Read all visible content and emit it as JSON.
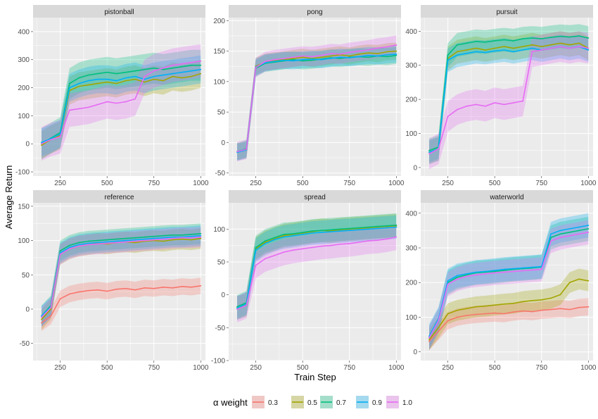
{
  "chart_data": {
    "type": "line",
    "xlabel": "Train Step",
    "ylabel": "Average Return",
    "x_ticks": [
      250,
      500,
      750,
      1000
    ],
    "xlim": [
      105,
      1025
    ],
    "grid": true,
    "legend_position": "bottom",
    "legend": {
      "title": "α weight",
      "entries": [
        {
          "label": "0.3",
          "color": "#F8766D"
        },
        {
          "label": "0.5",
          "color": "#A3A500"
        },
        {
          "label": "0.7",
          "color": "#00BF7D"
        },
        {
          "label": "0.9",
          "color": "#00B0F6"
        },
        {
          "label": "1.0",
          "color": "#E76BF3"
        }
      ]
    },
    "x": [
      150,
      200,
      250,
      300,
      350,
      400,
      450,
      500,
      550,
      600,
      650,
      700,
      750,
      800,
      850,
      900,
      950,
      1000
    ],
    "panels": [
      {
        "name": "pistonball",
        "ylim": [
          -115,
          450
        ],
        "y_ticks": [
          -100,
          0,
          100,
          200,
          300,
          400
        ],
        "series": [
          {
            "alpha": "0.5",
            "values": [
              -5,
              15,
              30,
              190,
              205,
              210,
              215,
              220,
              215,
              225,
              230,
              220,
              230,
              225,
              240,
              235,
              240,
              250
            ],
            "band": 50
          },
          {
            "alpha": "0.7",
            "values": [
              0,
              20,
              40,
              215,
              235,
              245,
              250,
              255,
              250,
              255,
              260,
              265,
              270,
              265,
              270,
              275,
              280,
              280
            ],
            "band": 55
          },
          {
            "alpha": "0.9",
            "values": [
              5,
              18,
              35,
              200,
              215,
              225,
              230,
              230,
              225,
              235,
              240,
              230,
              240,
              245,
              250,
              255,
              260,
              265
            ],
            "band": 50
          },
          {
            "alpha": "1.0",
            "values": [
              0,
              15,
              25,
              120,
              125,
              130,
              140,
              150,
              145,
              150,
              160,
              240,
              260,
              270,
              280,
              285,
              290,
              295
            ],
            "band": 60
          }
        ]
      },
      {
        "name": "pong",
        "ylim": [
          -55,
          205
        ],
        "y_ticks": [
          -50,
          0,
          50,
          100,
          150,
          200
        ],
        "series": [
          {
            "alpha": "0.5",
            "values": [
              -15,
              -12,
              125,
              132,
              134,
              136,
              138,
              140,
              138,
              140,
              142,
              144,
              142,
              145,
              147,
              146,
              149,
              150
            ],
            "band": 14
          },
          {
            "alpha": "0.7",
            "values": [
              -15,
              -10,
              122,
              130,
              132,
              134,
              136,
              134,
              135,
              137,
              139,
              138,
              140,
              141,
              140,
              142,
              141,
              143
            ],
            "band": 14
          },
          {
            "alpha": "0.9",
            "values": [
              -16,
              -12,
              124,
              131,
              133,
              135,
              134,
              136,
              137,
              136,
              138,
              140,
              139,
              141,
              143,
              142,
              144,
              145
            ],
            "band": 14
          },
          {
            "alpha": "1.0",
            "values": [
              -15,
              -11,
              123,
              133,
              136,
              138,
              140,
              142,
              141,
              143,
              146,
              145,
              148,
              150,
              152,
              155,
              157,
              160
            ],
            "band": 16
          }
        ]
      },
      {
        "name": "pursuit",
        "ylim": [
          -25,
          440
        ],
        "y_ticks": [
          0,
          100,
          200,
          300,
          400
        ],
        "series": [
          {
            "alpha": "0.5",
            "values": [
              45,
              55,
              320,
              340,
              345,
              350,
              345,
              350,
              355,
              350,
              355,
              360,
              355,
              360,
              365,
              360,
              365,
              350
            ],
            "band": 35
          },
          {
            "alpha": "0.7",
            "values": [
              50,
              60,
              330,
              360,
              365,
              370,
              368,
              372,
              375,
              372,
              378,
              380,
              378,
              382,
              385,
              383,
              386,
              380
            ],
            "band": 35
          },
          {
            "alpha": "0.9",
            "values": [
              45,
              55,
              315,
              330,
              335,
              340,
              338,
              342,
              345,
              340,
              345,
              350,
              345,
              350,
              355,
              350,
              355,
              345
            ],
            "band": 35
          },
          {
            "alpha": "1.0",
            "values": [
              40,
              55,
              150,
              170,
              180,
              185,
              180,
              190,
              185,
              190,
              195,
              340,
              345,
              350,
              355,
              350,
              355,
              350
            ],
            "band": 45
          }
        ]
      },
      {
        "name": "reference",
        "ylim": [
          -75,
          155
        ],
        "y_ticks": [
          -50,
          0,
          50,
          100,
          150
        ],
        "series": [
          {
            "alpha": "0.3",
            "values": [
              -20,
              -10,
              15,
              22,
              25,
              27,
              28,
              26,
              29,
              30,
              28,
              31,
              30,
              32,
              31,
              33,
              32,
              34
            ],
            "band": 12
          },
          {
            "alpha": "0.5",
            "values": [
              -15,
              0,
              80,
              88,
              92,
              94,
              96,
              95,
              97,
              98,
              97,
              99,
              100,
              99,
              101,
              102,
              101,
              103
            ],
            "band": 15
          },
          {
            "alpha": "0.7",
            "values": [
              -10,
              5,
              85,
              93,
              97,
              99,
              100,
              101,
              102,
              103,
              104,
              105,
              106,
              107,
              108,
              108,
              109,
              110
            ],
            "band": 15
          },
          {
            "alpha": "0.9",
            "values": [
              -10,
              3,
              82,
              90,
              94,
              96,
              97,
              98,
              99,
              100,
              101,
              102,
              103,
              104,
              105,
              105,
              106,
              107
            ],
            "band": 15
          },
          {
            "alpha": "1.0",
            "values": [
              -12,
              2,
              80,
              88,
              92,
              94,
              95,
              96,
              97,
              98,
              99,
              100,
              101,
              102,
              103,
              104,
              104,
              105
            ],
            "band": 15
          }
        ]
      },
      {
        "name": "spread",
        "ylim": [
          -100,
          140
        ],
        "y_ticks": [
          -100,
          -50,
          0,
          50,
          100
        ],
        "series": [
          {
            "alpha": "0.5",
            "values": [
              -20,
              -15,
              70,
              80,
              85,
              90,
              92,
              94,
              96,
              98,
              97,
              99,
              100,
              101,
              102,
              103,
              104,
              105
            ],
            "band": 18
          },
          {
            "alpha": "0.7",
            "values": [
              -18,
              -12,
              72,
              82,
              87,
              92,
              93,
              95,
              97,
              98,
              99,
              100,
              101,
              102,
              103,
              104,
              105,
              106
            ],
            "band": 18
          },
          {
            "alpha": "0.9",
            "values": [
              -20,
              -14,
              68,
              78,
              84,
              88,
              90,
              92,
              94,
              95,
              96,
              97,
              98,
              99,
              100,
              101,
              102,
              103
            ],
            "band": 18
          },
          {
            "alpha": "1.0",
            "values": [
              -22,
              -16,
              45,
              55,
              60,
              65,
              68,
              70,
              72,
              74,
              75,
              77,
              78,
              80,
              82,
              83,
              85,
              88
            ],
            "band": 20
          }
        ]
      },
      {
        "name": "waterworld",
        "ylim": [
          -25,
          430
        ],
        "y_ticks": [
          0,
          100,
          200,
          300,
          400
        ],
        "series": [
          {
            "alpha": "0.3",
            "values": [
              30,
              60,
              90,
              100,
              105,
              108,
              110,
              112,
              110,
              115,
              118,
              116,
              120,
              122,
              125,
              122,
              128,
              130
            ],
            "band": 25
          },
          {
            "alpha": "0.5",
            "values": [
              35,
              70,
              110,
              120,
              125,
              130,
              132,
              135,
              138,
              140,
              145,
              148,
              150,
              155,
              165,
              200,
              210,
              205
            ],
            "band": 30
          },
          {
            "alpha": "0.7",
            "values": [
              40,
              90,
              200,
              215,
              222,
              228,
              230,
              232,
              235,
              238,
              240,
              242,
              245,
              330,
              340,
              345,
              350,
              355
            ],
            "band": 35
          },
          {
            "alpha": "0.9",
            "values": [
              45,
              95,
              205,
              220,
              225,
              230,
              232,
              235,
              238,
              240,
              242,
              244,
              246,
              340,
              350,
              355,
              360,
              365
            ],
            "band": 35
          },
          {
            "alpha": "1.0",
            "values": [
              40,
              90,
              195,
              210,
              218,
              222,
              225,
              228,
              230,
              232,
              234,
              236,
              238,
              320,
              330,
              335,
              340,
              345
            ],
            "band": 35
          }
        ]
      }
    ]
  }
}
